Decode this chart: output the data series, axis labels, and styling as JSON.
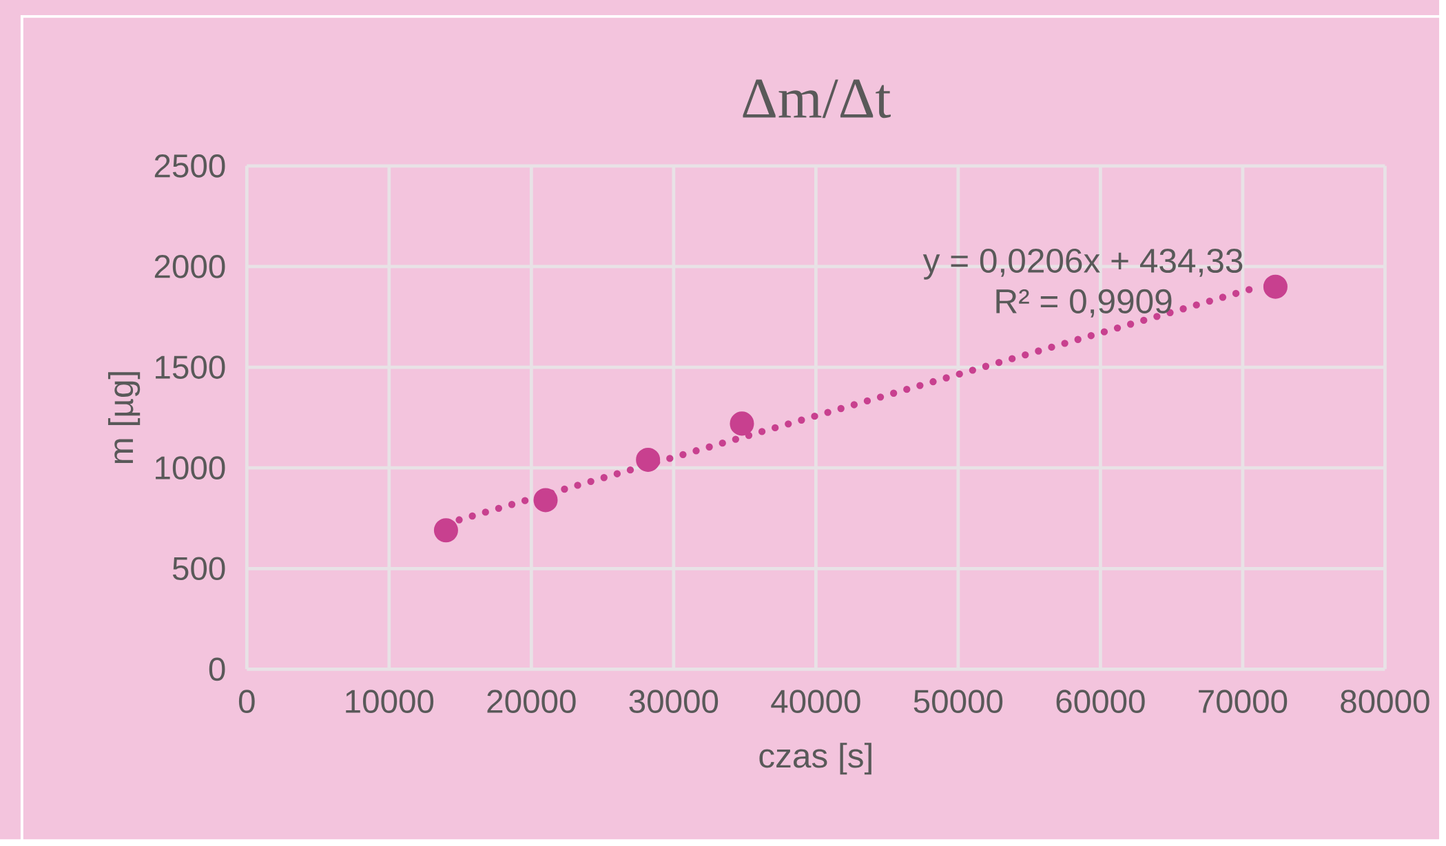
{
  "chart_data": {
    "type": "scatter",
    "title": "Δm/Δt",
    "xlabel": "czas [s]",
    "ylabel": "m [µg]",
    "xlim": [
      0,
      80000
    ],
    "ylim": [
      0,
      2500
    ],
    "xticks": [
      0,
      10000,
      20000,
      30000,
      40000,
      50000,
      60000,
      70000,
      80000
    ],
    "yticks": [
      0,
      500,
      1000,
      1500,
      2000,
      2500
    ],
    "grid": true,
    "annotations": [
      "y = 0,0206x + 434,33",
      "R² = 0,9909"
    ],
    "series": [
      {
        "marker": "circle",
        "color": "#c8408f",
        "x": [
          14000,
          21000,
          28200,
          34800,
          72300
        ],
        "values": [
          690,
          840,
          1040,
          1220,
          1900
        ]
      },
      {
        "type": "line",
        "line_style": "dotted",
        "marker": "none",
        "color": "#c8408f",
        "x": [
          14000,
          71000
        ],
        "values": [
          723,
          1897
        ]
      }
    ]
  }
}
